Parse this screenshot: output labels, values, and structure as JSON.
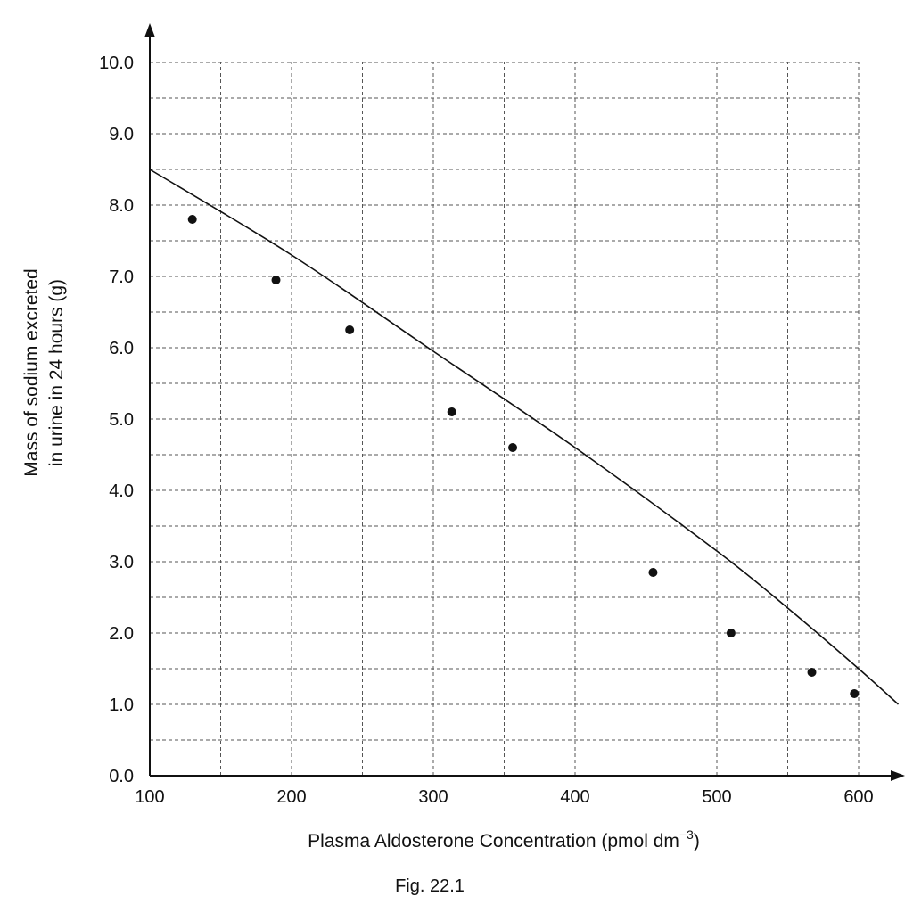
{
  "chart_data": {
    "type": "scatter",
    "title": "",
    "xlabel": "Plasma Aldosterone Concentration (pmol dm",
    "xlabel_superscript": "−3",
    "xlabel_suffix": ")",
    "ylabel_line1": "Mass of sodium excreted",
    "ylabel_line2": "in urine in 24 hours (g)",
    "caption": "Fig. 22.1",
    "xlim": [
      100,
      630
    ],
    "ylim": [
      0,
      10.3
    ],
    "x_grid_step": 50,
    "y_grid_step": 0.5,
    "grid": true,
    "x_ticks": [
      100,
      200,
      300,
      400,
      500,
      600
    ],
    "x_tick_labels": [
      "100",
      "200",
      "300",
      "400",
      "500",
      "600"
    ],
    "y_ticks": [
      0,
      1,
      2,
      3,
      4,
      5,
      6,
      7,
      8,
      9,
      10
    ],
    "y_tick_labels": [
      "0.0",
      "1.0",
      "2.0",
      "3.0",
      "4.0",
      "5.0",
      "6.0",
      "7.0",
      "8.0",
      "9.0",
      "10.0"
    ],
    "series": [
      {
        "type": "scatter",
        "points": [
          {
            "x": 130,
            "y": 7.8
          },
          {
            "x": 189,
            "y": 6.95
          },
          {
            "x": 241,
            "y": 6.25
          },
          {
            "x": 313,
            "y": 5.1
          },
          {
            "x": 356,
            "y": 4.6
          },
          {
            "x": 455,
            "y": 2.85
          },
          {
            "x": 510,
            "y": 2.0
          },
          {
            "x": 567,
            "y": 1.45
          },
          {
            "x": 597,
            "y": 1.15
          }
        ]
      },
      {
        "type": "line",
        "points": [
          {
            "x": 100,
            "y": 8.5
          },
          {
            "x": 200,
            "y": 7.3
          },
          {
            "x": 300,
            "y": 5.95
          },
          {
            "x": 400,
            "y": 4.6
          },
          {
            "x": 500,
            "y": 3.15
          },
          {
            "x": 550,
            "y": 2.35
          },
          {
            "x": 600,
            "y": 1.5
          },
          {
            "x": 628,
            "y": 1.0
          }
        ]
      }
    ]
  }
}
